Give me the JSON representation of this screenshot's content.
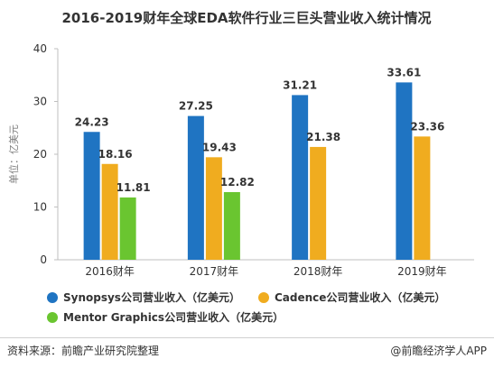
{
  "chart_data": {
    "type": "bar",
    "title": "2016-2019财年全球EDA软件行业三巨头营业收入统计情况",
    "ylabel": "单位：亿美元",
    "xlabel": "",
    "categories": [
      "2016财年",
      "2017财年",
      "2018财年",
      "2019财年"
    ],
    "ylim": [
      0,
      40
    ],
    "yticks": [
      0,
      10,
      20,
      30,
      40
    ],
    "grid": false,
    "legend_position": "bottom",
    "series": [
      {
        "name": "Synopsys公司营业收入（亿美元）",
        "color": "#1f74c2",
        "values": [
          24.23,
          27.25,
          31.21,
          33.61
        ],
        "labels": [
          "24.23",
          "27.25",
          "31.21",
          "33.61"
        ]
      },
      {
        "name": "Cadence公司营业收入（亿美元）",
        "color": "#f0ac1f",
        "values": [
          18.16,
          19.43,
          21.38,
          23.36
        ],
        "labels": [
          "18.16",
          "19.43",
          "21.38",
          "23.36"
        ]
      },
      {
        "name": "Mentor Graphics公司营业收入（亿美元）",
        "color": "#6ac530",
        "values": [
          11.81,
          12.82,
          null,
          null
        ],
        "labels": [
          "11.81",
          "12.82",
          null,
          null
        ]
      }
    ]
  },
  "footer": {
    "source": "资料来源：前瞻产业研究院整理",
    "brand": "@前瞻经济学人APP"
  }
}
